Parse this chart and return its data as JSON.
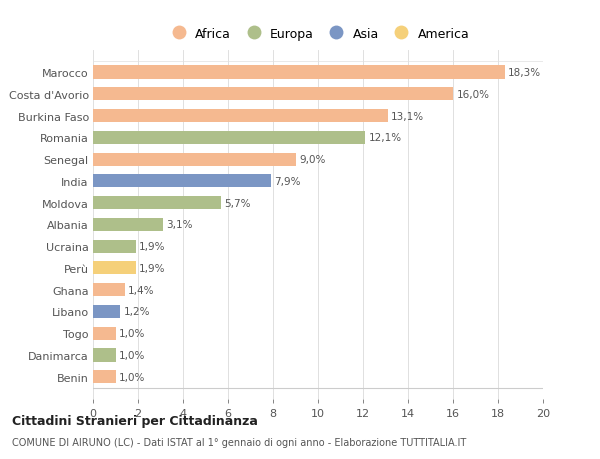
{
  "countries": [
    "Marocco",
    "Costa d'Avorio",
    "Burkina Faso",
    "Romania",
    "Senegal",
    "India",
    "Moldova",
    "Albania",
    "Ucraina",
    "Perù",
    "Ghana",
    "Libano",
    "Togo",
    "Danimarca",
    "Benin"
  ],
  "values": [
    18.3,
    16.0,
    13.1,
    12.1,
    9.0,
    7.9,
    5.7,
    3.1,
    1.9,
    1.9,
    1.4,
    1.2,
    1.0,
    1.0,
    1.0
  ],
  "labels": [
    "18,3%",
    "16,0%",
    "13,1%",
    "12,1%",
    "9,0%",
    "7,9%",
    "5,7%",
    "3,1%",
    "1,9%",
    "1,9%",
    "1,4%",
    "1,2%",
    "1,0%",
    "1,0%",
    "1,0%"
  ],
  "continents": [
    "Africa",
    "Africa",
    "Africa",
    "Europa",
    "Africa",
    "Asia",
    "Europa",
    "Europa",
    "Europa",
    "America",
    "Africa",
    "Asia",
    "Africa",
    "Europa",
    "Africa"
  ],
  "colors": {
    "Africa": "#F5B990",
    "Europa": "#AEBF8A",
    "Asia": "#7B96C4",
    "America": "#F5D07A"
  },
  "legend_order": [
    "Africa",
    "Europa",
    "Asia",
    "America"
  ],
  "xlim": [
    0,
    20
  ],
  "xticks": [
    0,
    2,
    4,
    6,
    8,
    10,
    12,
    14,
    16,
    18,
    20
  ],
  "title_main": "Cittadini Stranieri per Cittadinanza",
  "title_sub": "COMUNE DI AIRUNO (LC) - Dati ISTAT al 1° gennaio di ogni anno - Elaborazione TUTTITALIA.IT",
  "background_color": "#ffffff",
  "grid_color": "#e0e0e0",
  "bar_height": 0.6
}
